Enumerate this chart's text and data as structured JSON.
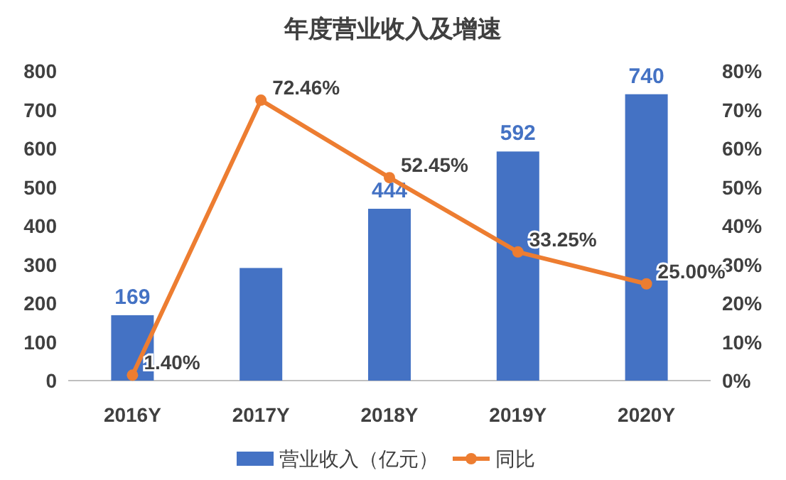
{
  "chart_data": {
    "type": "bar",
    "title": "年度营业收入及增速",
    "categories": [
      "2016Y",
      "2017Y",
      "2018Y",
      "2019Y",
      "2020Y"
    ],
    "series": [
      {
        "name": "营业收入（亿元）",
        "color": "#4472c4",
        "values": [
          169,
          291,
          444,
          592,
          740
        ],
        "value_labels": [
          "169",
          null,
          "444",
          "592",
          "740"
        ]
      },
      {
        "type": "line",
        "name": "同比",
        "color": "#ed7d31",
        "axis": "y2",
        "marker": "circle",
        "values": [
          1.4,
          72.46,
          52.45,
          33.25,
          25.0
        ],
        "value_labels": [
          "1.40%",
          "72.46%",
          "52.45%",
          "33.25%",
          "25.00%"
        ]
      }
    ],
    "ylim": [
      0,
      800
    ],
    "yticks": [
      0,
      100,
      200,
      300,
      400,
      500,
      600,
      700,
      800
    ],
    "y2lim": [
      0,
      80
    ],
    "y2ticks": [
      {
        "value": 0,
        "label": "0%"
      },
      {
        "value": 10,
        "label": "10%"
      },
      {
        "value": 20,
        "label": "20%"
      },
      {
        "value": 30,
        "label": "30%"
      },
      {
        "value": 40,
        "label": "40%"
      },
      {
        "value": 50,
        "label": "50%"
      },
      {
        "value": 60,
        "label": "60%"
      },
      {
        "value": 70,
        "label": "70%"
      },
      {
        "value": 80,
        "label": "80%"
      }
    ],
    "grid": false,
    "legend": "bottom"
  }
}
